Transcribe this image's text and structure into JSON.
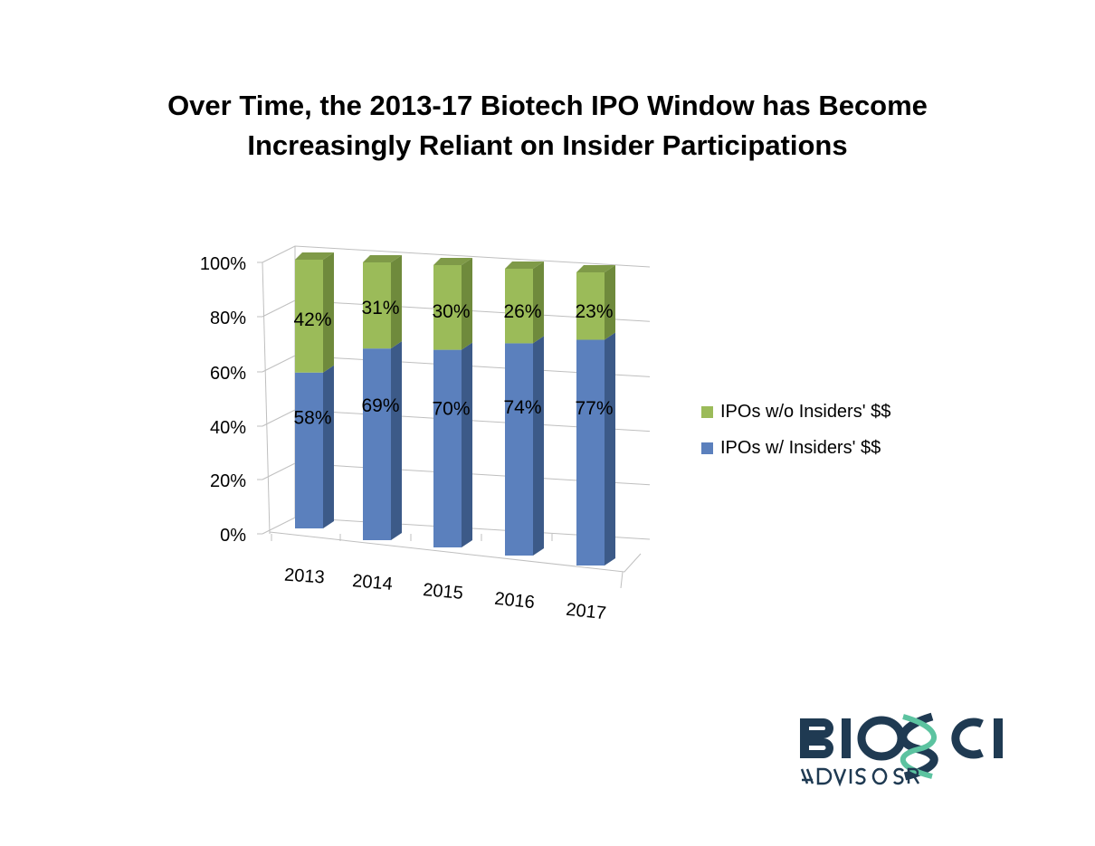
{
  "title_line1": "Over Time, the 2013-17 Biotech IPO Window has Become",
  "title_line2": "Increasingly Reliant on Insider Participations",
  "chart_data": {
    "type": "bar",
    "stacked": true,
    "three_d": true,
    "title": "Over Time, the 2013-17 Biotech IPO Window has Become Increasingly Reliant on Insider Participations",
    "categories": [
      "2013",
      "2014",
      "2015",
      "2016",
      "2017"
    ],
    "series": [
      {
        "name": "IPOs w/ Insiders' $$",
        "values": [
          58,
          69,
          70,
          74,
          77
        ],
        "labels": [
          "58%",
          "69%",
          "70%",
          "74%",
          "77%"
        ],
        "color": "#5b80bd"
      },
      {
        "name": "IPOs w/o Insiders' $$",
        "values": [
          42,
          31,
          30,
          26,
          23
        ],
        "labels": [
          "42%",
          "31%",
          "30%",
          "26%",
          "23%"
        ],
        "color": "#9bbb59"
      }
    ],
    "ylim": [
      0,
      100
    ],
    "yticks": [
      "0%",
      "20%",
      "40%",
      "60%",
      "80%",
      "100%"
    ],
    "grid": true,
    "legend_position": "right",
    "xlabel": "",
    "ylabel": ""
  },
  "logo": {
    "name": "BIOSCI",
    "sub": "ADVISORS"
  }
}
